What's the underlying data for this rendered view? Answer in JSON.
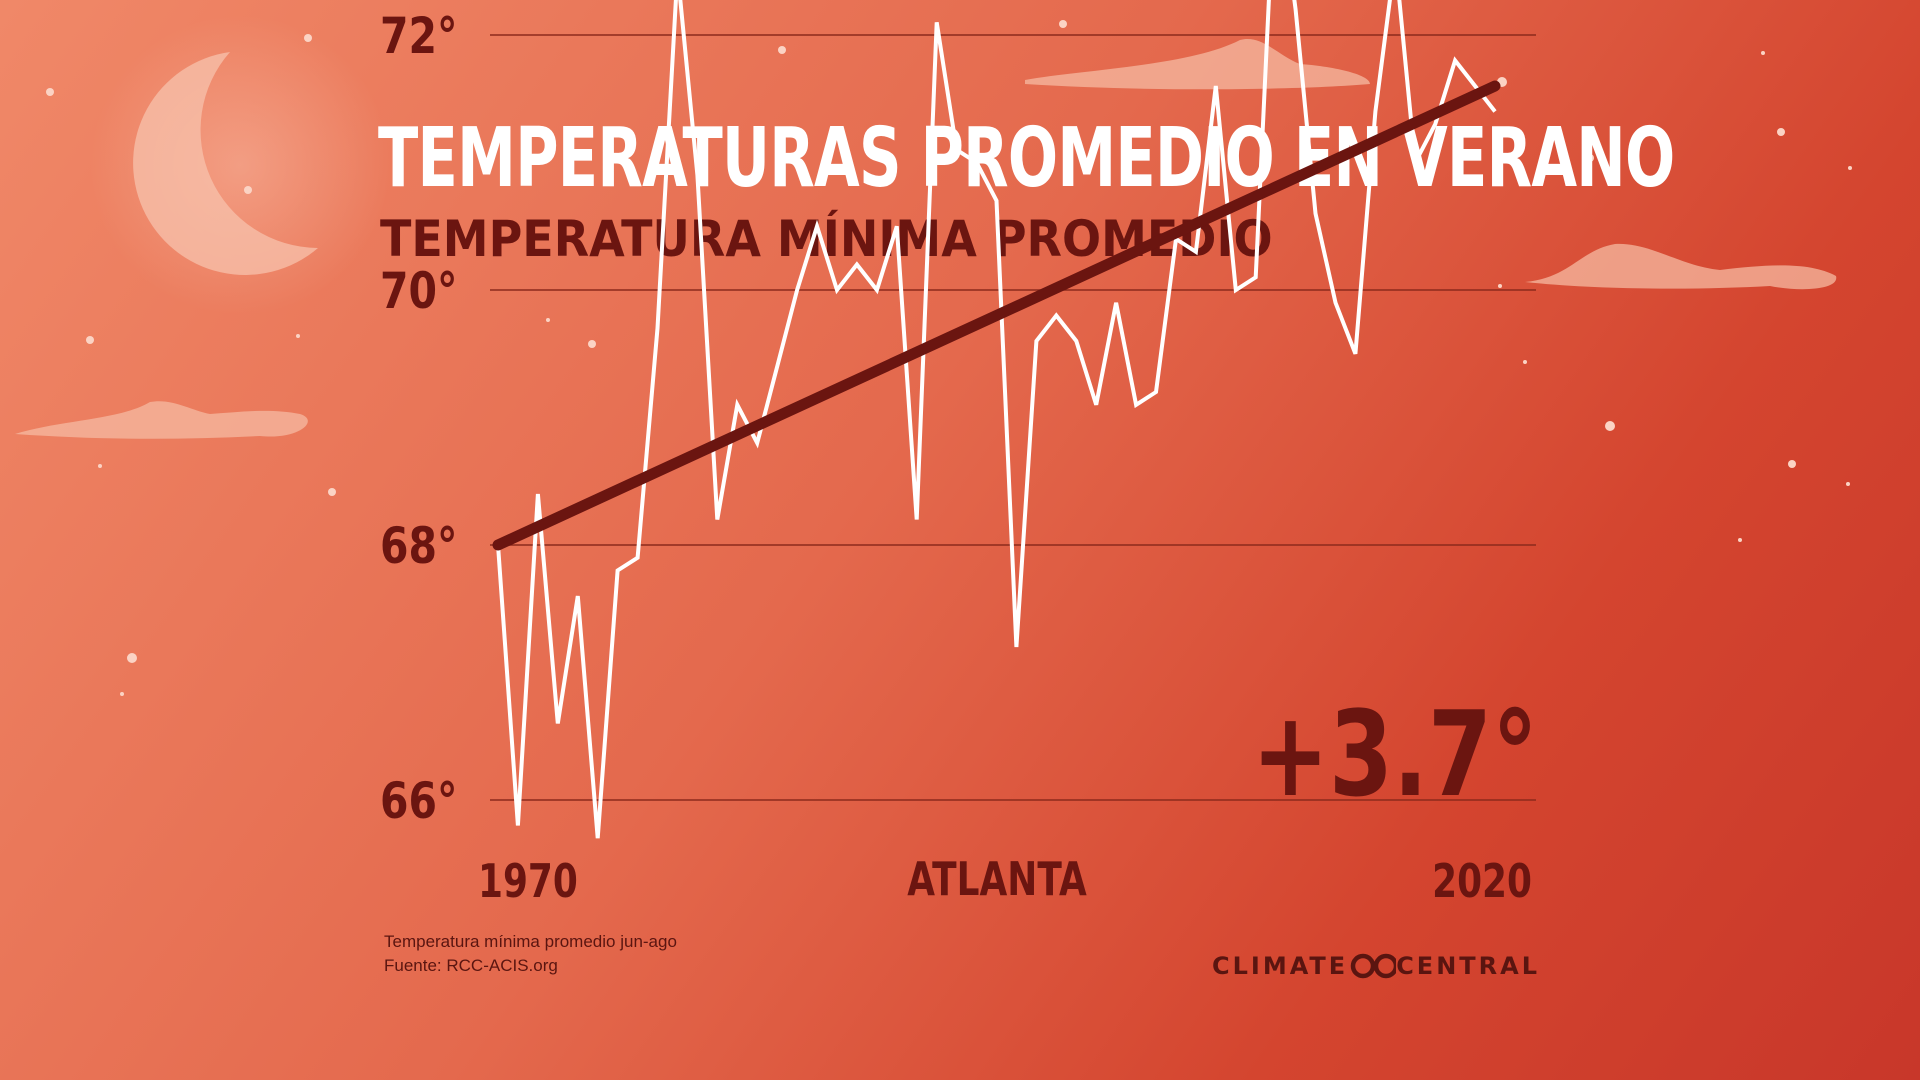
{
  "title": "TEMPERATURAS PROMEDIO EN VERANO",
  "subtitle": "TEMPERATURA MÍNIMA PROMEDIO",
  "location": "ATLANTA",
  "change_label": "+3.7°",
  "footnote_line1": "Temperatura mínima promedio jun-ago",
  "footnote_line2": "Fuente:  RCC-ACIS.org",
  "brand_left": "CLIMATE",
  "brand_right": "CENTRAL",
  "logo_icon": "climate-central-logo-icon",
  "colors": {
    "data_line": "#ffffff",
    "trend_line": "#6b1510",
    "text_dark": "#6b1510",
    "grid": "#8c2a1c"
  },
  "chart_data": {
    "type": "line",
    "x_start": 1970,
    "x_end": 2020,
    "x_tick_labels": [
      "1970",
      "2020"
    ],
    "y_ticks": [
      66,
      68,
      70,
      72
    ],
    "y_tick_labels": [
      "66°",
      "68°",
      "70°",
      "72°"
    ],
    "ylim": [
      66,
      74.8
    ],
    "grid": true,
    "series": [
      {
        "values": [
          68.0,
          65.8,
          68.4,
          66.6,
          67.6,
          65.7,
          67.8,
          67.9,
          69.7,
          72.5,
          70.9,
          68.2,
          69.1,
          68.8,
          69.4,
          70.0,
          70.5,
          70.0,
          70.2,
          70.0,
          70.5,
          68.2,
          72.1,
          71.1,
          71.0,
          70.7,
          67.2,
          69.6,
          69.8,
          69.6,
          69.1,
          69.9,
          69.1,
          69.2,
          70.4,
          70.3,
          71.6,
          70.0,
          70.1,
          73.4,
          72.2,
          70.6,
          69.9,
          69.5,
          71.4,
          72.6,
          71.0,
          71.3,
          71.8,
          71.6,
          71.4
        ]
      }
    ],
    "trend": {
      "start": 68.0,
      "end": 71.6
    }
  }
}
